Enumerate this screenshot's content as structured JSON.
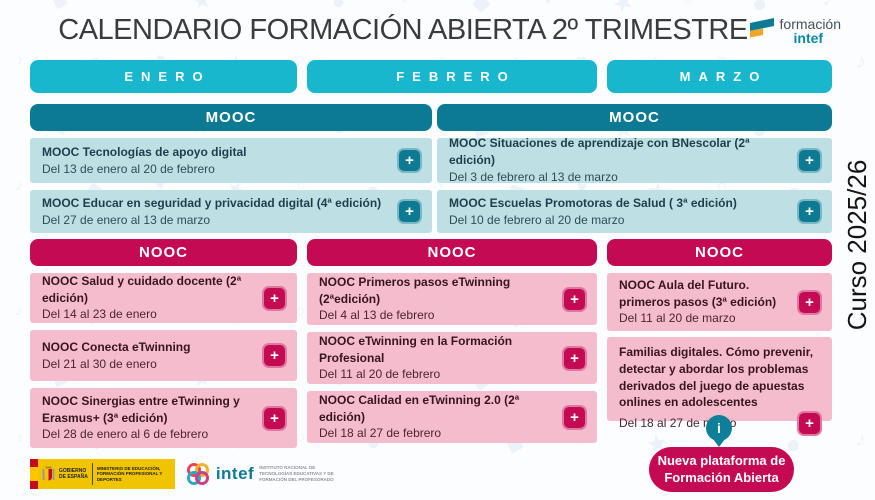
{
  "ui": {
    "plus_label": "+",
    "info_icon": "i"
  },
  "header": {
    "title": "CALENDARIO FORMACIÓN ABIERTA 2º TRIMESTRE",
    "brand": {
      "line1": "formación",
      "line2": "intef"
    }
  },
  "side_label": "Curso 2025/26",
  "months": [
    {
      "label": "ENERO"
    },
    {
      "label": "FEBRERO"
    },
    {
      "label": "MARZO"
    }
  ],
  "sections": {
    "mooc": {
      "label": "MOOC",
      "columns": [
        {
          "cards": [
            {
              "title": "MOOC Tecnologías de apoyo digital",
              "dates": "Del 13 de enero al 20 de febrero"
            },
            {
              "title": "MOOC Educar en seguridad y privacidad digital (4ª edición)",
              "dates": "Del 27 de enero al 13 de marzo"
            }
          ]
        },
        {
          "cards": [
            {
              "title": "MOOC Situaciones de aprendizaje con BNescolar (2ª edición)",
              "dates": "Del 3 de febrero al 13 de marzo"
            },
            {
              "title": "MOOC Escuelas Promotoras de Salud ( 3ª edición)",
              "dates": "Del 10 de febrero al 20 de marzo"
            }
          ]
        }
      ]
    },
    "nooc": {
      "label": "NOOC",
      "columns": [
        {
          "cards": [
            {
              "title": "NOOC Salud y cuidado docente (2ª edición)",
              "dates": "Del 14 al 23 de enero"
            },
            {
              "title": "NOOC Conecta eTwinning",
              "dates": "Del 21 al 30 de enero"
            },
            {
              "title": "NOOC Sinergias entre eTwinning y Erasmus+ (3ª edición)",
              "dates": "Del 28 de enero al 6 de febrero"
            }
          ]
        },
        {
          "cards": [
            {
              "title": "NOOC Primeros pasos eTwinning (2ªedición)",
              "dates": "Del 4 al 13 de febrero"
            },
            {
              "title": "NOOC eTwinning en la Formación Profesional",
              "dates": "Del 11 al 20 de febrero"
            },
            {
              "title": "NOOC Calidad en eTwinning 2.0 (2ª edición)",
              "dates": "Del 18 al 27 de febrero"
            }
          ]
        },
        {
          "cards": [
            {
              "title": "NOOC Aula del Futuro. primeros pasos (3ª edición)",
              "dates": "Del 11 al 20 de marzo"
            },
            {
              "title": "Familias digitales. Cómo prevenir, detectar y abordar los problemas derivados del juego de apuestas onlines en adolescentes",
              "dates": "Del 18 al 27 de marzo"
            }
          ]
        }
      ]
    }
  },
  "cta": {
    "line1": "Nueva plataforma de",
    "line2": "Formación Abierta"
  },
  "footer": {
    "government": {
      "name_line1": "GOBIERNO",
      "name_line2": "DE ESPAÑA",
      "ministry": "MINISTERIO DE EDUCACIÓN, FORMACIÓN PROFESIONAL Y DEPORTES"
    },
    "intef": {
      "name": "intef",
      "description": "INSTITUTO NACIONAL DE TECNOLOGÍAS EDUCATIVAS Y DE FORMACIÓN DEL PROFESORADO"
    }
  },
  "colors": {
    "cyan": "#18b7cd",
    "teal": "#0d7a94",
    "mooc_card": "#bedfe4",
    "crimson": "#c40a52",
    "nooc_card": "#f5bccd"
  }
}
